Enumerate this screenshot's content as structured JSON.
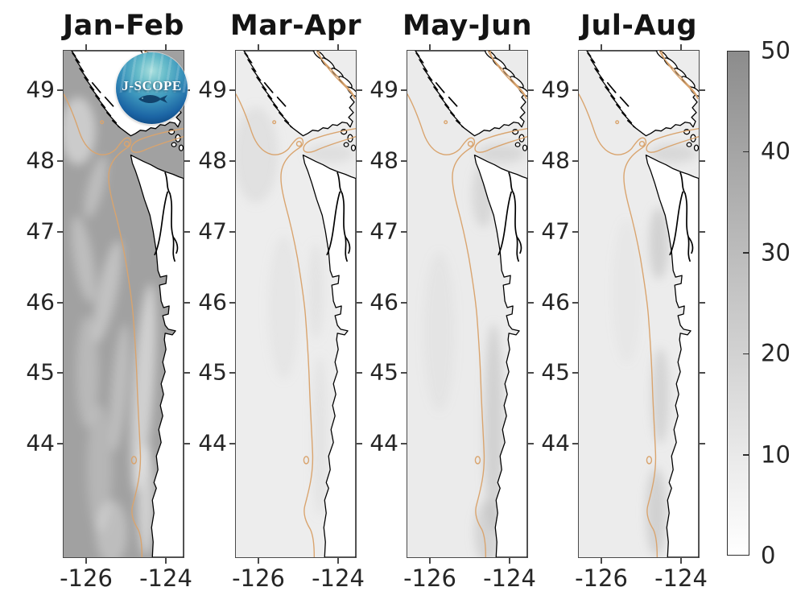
{
  "figure": {
    "panels": [
      {
        "title": "Jan-Feb",
        "variant": "dark",
        "ocean_color": "#a1a1a1",
        "has_logo": true,
        "y_tick_labels": [
          "49",
          "48",
          "47",
          "46",
          "45",
          "44"
        ],
        "x_tick_labels": [
          "-126",
          "-124"
        ]
      },
      {
        "title": "Mar-Apr",
        "variant": "light-a",
        "ocean_color": "#ededed",
        "has_logo": false,
        "y_tick_labels": [
          "49",
          "48",
          "47",
          "46",
          "45",
          "44"
        ],
        "x_tick_labels": [
          "-126",
          "-124"
        ]
      },
      {
        "title": "May-Jun",
        "variant": "light-b",
        "ocean_color": "#ebebeb",
        "has_logo": false,
        "y_tick_labels": [
          "49",
          "48",
          "47",
          "46",
          "45",
          "44"
        ],
        "x_tick_labels": [
          "-126",
          "-124"
        ]
      },
      {
        "title": "Jul-Aug",
        "variant": "light-c",
        "ocean_color": "#ececec",
        "has_logo": false,
        "y_tick_labels": [
          "49",
          "48",
          "47",
          "46",
          "45",
          "44"
        ],
        "x_tick_labels": [
          "-126",
          "-124"
        ]
      }
    ],
    "colorbar": {
      "tick_labels": [
        "50",
        "40",
        "30",
        "20",
        "10",
        "0"
      ],
      "top_color": "#8c8c8c",
      "bottom_color": "#ffffff"
    },
    "logo": {
      "label": "J-SCOPE"
    },
    "colors": {
      "contour": "#d9a46e",
      "coastline": "#000000",
      "land": "#ffffff",
      "axis_text": "#262626",
      "panel_border": "#4a4a4a"
    }
  },
  "chart_data": {
    "type": "heatmap",
    "title": "",
    "xlabel": "",
    "ylabel": "",
    "x": {
      "tick_labels": [
        -126,
        -124
      ],
      "range": [
        -126.6,
        -123.5
      ],
      "unit": "degrees longitude"
    },
    "y": {
      "tick_labels": [
        49,
        48,
        47,
        46,
        45,
        44
      ],
      "range": [
        42.4,
        49.6
      ],
      "unit": "degrees latitude"
    },
    "colorbar": {
      "min": 0,
      "max": 50,
      "ticks": [
        0,
        10,
        20,
        30,
        40,
        50
      ],
      "colormap": "reversed grayscale (0 = white, 50 = dark gray)"
    },
    "legend_position": "right colorbar",
    "grid": false,
    "panels": [
      {
        "title": "Jan-Feb",
        "approx_values": {
          "offshore_deep": 35,
          "offshore_streaks": 15,
          "shelf_nearshore_south": 8,
          "strait_juan_de_fuca": 25
        },
        "description": "Dark gray (~30-40) over most of the ocean with lighter streaky filaments; lighter (~5-15) narrow nearshore band south of 47N."
      },
      {
        "title": "Mar-Apr",
        "approx_values": {
          "offshore_deep": 4,
          "shelf": 3,
          "nearshore": 4
        },
        "description": "Nearly uniform light values (~0-8) across the whole domain."
      },
      {
        "title": "May-Jun",
        "approx_values": {
          "offshore_deep": 3,
          "shelf": 5,
          "nearshore_south": 12
        },
        "description": "Mostly light (~0-8) with a darker band (~8-15) hugging the coast south of 47N."
      },
      {
        "title": "Jul-Aug",
        "approx_values": {
          "offshore_deep": 3,
          "shelf": 6,
          "nearshore_south": 13
        },
        "description": "Mostly light (~0-8) with patchy darker values (~8-15) along the Washington/Oregon shelf."
      }
    ],
    "overlays": [
      "tan shelf-break isobath contour lines",
      "black coastline with white land",
      "J-SCOPE circular logo on first panel"
    ]
  }
}
